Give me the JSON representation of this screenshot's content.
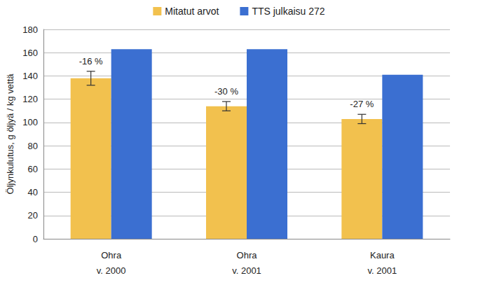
{
  "chart_data": {
    "type": "bar",
    "categories": [
      "Ohra\nv. 2000",
      "Ohra\nv. 2001",
      "Kaura\nv. 2001"
    ],
    "series": [
      {
        "name": "Mitatut arvot",
        "color": "#f2c14e",
        "values": [
          138,
          114,
          103
        ],
        "errors": [
          6,
          4,
          4
        ]
      },
      {
        "name": "TTS julkaisu 272",
        "color": "#3b6fd1",
        "values": [
          163,
          163,
          141
        ]
      }
    ],
    "y_label": "Öljynkulutus, g öljyä / kg vettä",
    "ylim": [
      0,
      180
    ],
    "yticks": [
      0,
      20,
      40,
      60,
      80,
      100,
      120,
      140,
      160,
      180
    ],
    "grid": true,
    "legend": "top",
    "annotations": [
      {
        "category": "Ohra\nv. 2000",
        "text": "-16 %"
      },
      {
        "category": "Ohra\nv. 2001",
        "text": "-30 %"
      },
      {
        "category": "Kaura\nv. 2001",
        "text": "-27 %"
      }
    ]
  }
}
